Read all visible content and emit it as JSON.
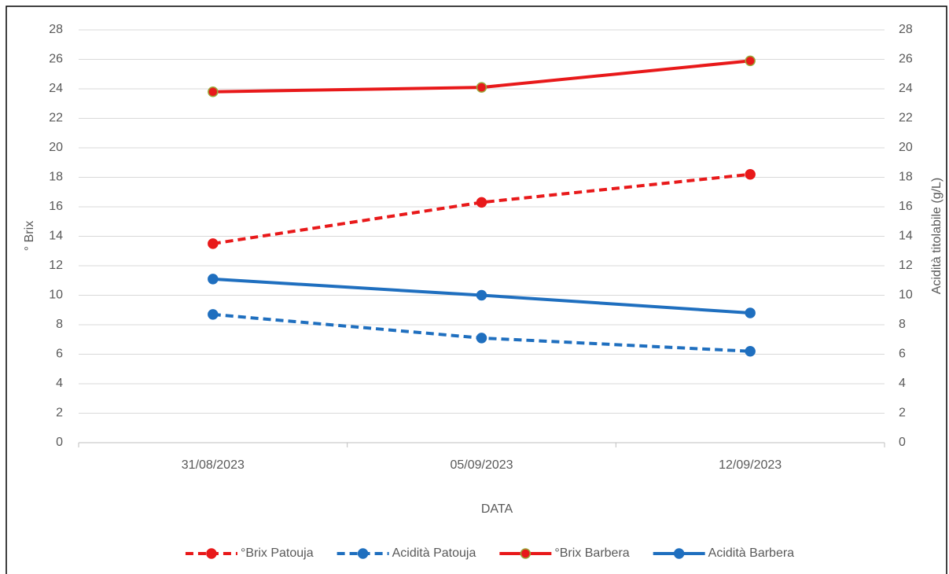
{
  "chart_data": {
    "type": "line",
    "categories": [
      "31/08/2023",
      "05/09/2023",
      "12/09/2023"
    ],
    "xlabel": "DATA",
    "ylabel": "° Brix",
    "y2label": "Acidità titolabile (g/L)",
    "ylim": [
      0,
      28
    ],
    "yticks": [
      0,
      2,
      4,
      6,
      8,
      10,
      12,
      14,
      16,
      18,
      20,
      22,
      24,
      26,
      28
    ],
    "y2lim": [
      0,
      28
    ],
    "y2ticks": [
      0,
      2,
      4,
      6,
      8,
      10,
      12,
      14,
      16,
      18,
      20,
      22,
      24,
      26,
      28
    ],
    "grid": true,
    "legend": "bottom",
    "series": [
      {
        "name": "°Brix Patouja",
        "color": "#e8191a",
        "linestyle": "dashed",
        "values": [
          13.5,
          16.3,
          18.2
        ]
      },
      {
        "name": "Acidità Patouja",
        "color": "#1f6fbf",
        "linestyle": "dashed",
        "axis": "y2",
        "values": [
          8.7,
          7.1,
          6.2
        ]
      },
      {
        "name": "°Brix Barbera",
        "color": "#e8191a",
        "marker_edge": "#9aa83a",
        "linestyle": "solid",
        "values": [
          23.8,
          24.1,
          25.9
        ]
      },
      {
        "name": "Acidità Barbera",
        "color": "#1f6fbf",
        "linestyle": "solid",
        "axis": "y2",
        "values": [
          11.1,
          10.0,
          8.8
        ]
      }
    ]
  }
}
